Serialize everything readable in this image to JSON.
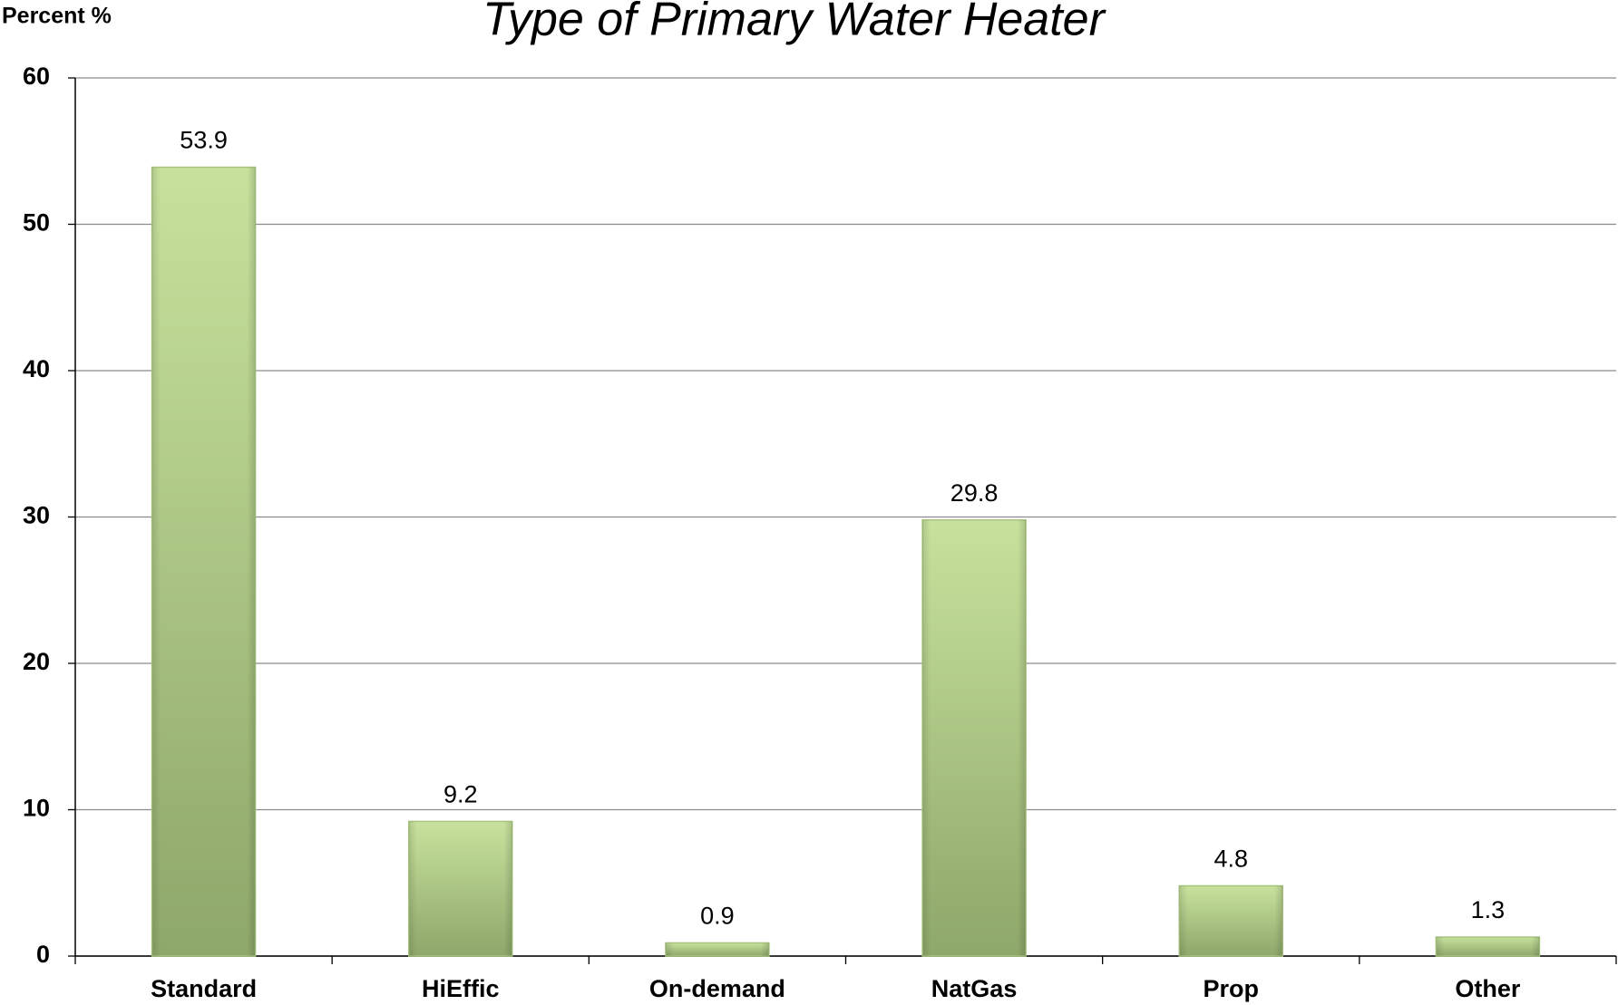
{
  "chart_data": {
    "type": "bar",
    "title": "Type of Primary Water Heater",
    "y_label": "Percent %",
    "categories": [
      "Standard",
      "HiEffic",
      "On-demand",
      "NatGas",
      "Prop",
      "Other"
    ],
    "values": [
      53.9,
      9.2,
      0.9,
      29.8,
      4.8,
      1.3
    ],
    "color": "#a9c67f",
    "ylim": [
      0,
      60
    ],
    "yticks": [
      0,
      10,
      20,
      30,
      40,
      50,
      60
    ],
    "grid": true
  }
}
